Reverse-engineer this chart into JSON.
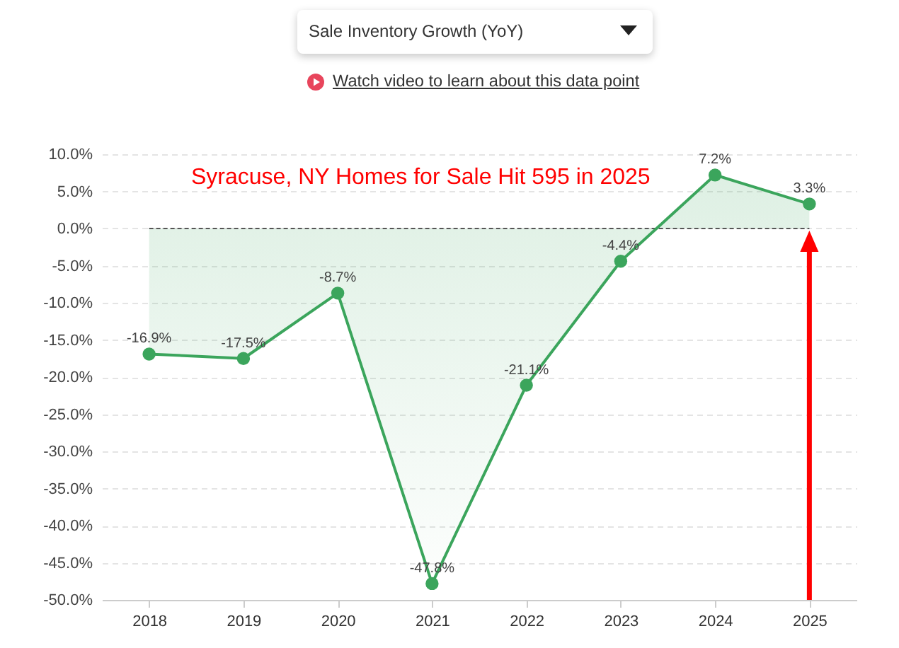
{
  "chart_data": {
    "type": "area",
    "title": "Syracuse, NY Homes for Sale Hit 595 in 2025",
    "annotations": [
      "Sale Inventory Growth (YoY)",
      "Watch video to learn about this data point"
    ],
    "categories": [
      "2018",
      "2019",
      "2020",
      "2021",
      "2022",
      "2023",
      "2024",
      "2025"
    ],
    "values": [
      -16.9,
      -17.5,
      -8.7,
      -47.8,
      -21.1,
      -4.4,
      7.2,
      3.3
    ],
    "value_labels": [
      "-16.9%",
      "-17.5%",
      "-8.7%",
      "-47.8%",
      "-21.1%",
      "-4.4%",
      "7.2%",
      "3.3%"
    ],
    "color": "#3ba55c",
    "ylim": [
      -50,
      10
    ],
    "yticks": [
      {
        "value": -50,
        "label": "-50.0%"
      },
      {
        "value": -45,
        "label": "-45.0%"
      },
      {
        "value": -40,
        "label": "-40.0%"
      },
      {
        "value": -35,
        "label": "-35.0%"
      },
      {
        "value": -30,
        "label": "-30.0%"
      },
      {
        "value": -25,
        "label": "-25.0%"
      },
      {
        "value": -20,
        "label": "-20.0%"
      },
      {
        "value": -15,
        "label": "-15.0%"
      },
      {
        "value": -10,
        "label": "-10.0%"
      },
      {
        "value": -5,
        "label": "-5.0%"
      },
      {
        "value": 0,
        "label": "0.0%"
      },
      {
        "value": 5,
        "label": "5.0%"
      },
      {
        "value": 10,
        "label": "10.0%"
      }
    ],
    "grid": "y",
    "marker": "circle",
    "ref_lines": [
      {
        "axis": "y",
        "value": 0,
        "color": "#555555",
        "line_style": "dashed"
      }
    ]
  }
}
